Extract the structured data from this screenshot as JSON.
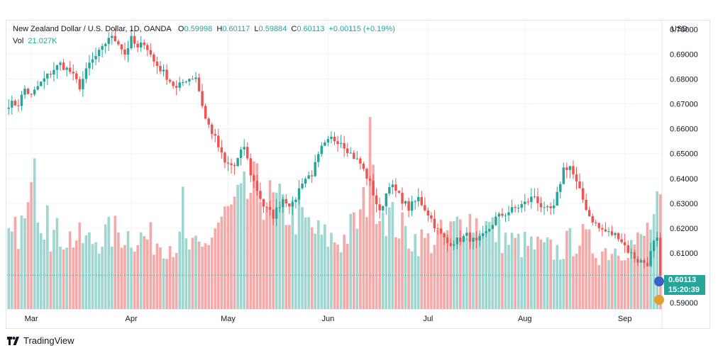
{
  "legend": {
    "symbol": "New Zealand Dollar / U.S. Dollar, 1D, OANDA",
    "open_label": "O",
    "open": "0.59998",
    "high_label": "H",
    "high": "0.60117",
    "low_label": "L",
    "low": "0.59884",
    "close_label": "C",
    "close": "0.60113",
    "change": "+0.00115 (+0.19%)",
    "vol_label": "Vol",
    "vol": "21.027K"
  },
  "axis": {
    "currency": "USD"
  },
  "price_tag": {
    "price": "0.60113",
    "countdown": "15:20:39"
  },
  "brand": {
    "name": "TradingView",
    "icon": "tradingview-logo-icon"
  },
  "colors": {
    "up": "#26a69a",
    "down": "#ef5350",
    "up_vol": "#9fd6d0",
    "down_vol": "#f5a9a8",
    "grid": "#f0f3fa"
  },
  "chart_data": {
    "type": "candlestick",
    "title": "New Zealand Dollar / U.S. Dollar, 1D, OANDA",
    "ylabel": "USD",
    "ylim": [
      0.5875,
      0.7035
    ],
    "y_ticks": [
      "0.70000",
      "0.69000",
      "0.68000",
      "0.67000",
      "0.66000",
      "0.65000",
      "0.64000",
      "0.63000",
      "0.62000",
      "0.61000",
      "0.59000"
    ],
    "x_ticks": [
      "Mar",
      "Apr",
      "May",
      "Jun",
      "Jul",
      "Aug",
      "Sep"
    ],
    "x_tick_index": [
      7,
      38,
      68,
      99,
      130,
      160,
      191
    ],
    "anchors": [
      [
        0,
        0.67
      ],
      [
        3,
        0.67
      ],
      [
        5,
        0.676
      ],
      [
        7,
        0.673
      ],
      [
        9,
        0.677
      ],
      [
        14,
        0.684
      ],
      [
        16,
        0.686
      ],
      [
        19,
        0.683
      ],
      [
        22,
        0.677
      ],
      [
        25,
        0.686
      ],
      [
        29,
        0.692
      ],
      [
        31,
        0.697
      ],
      [
        34,
        0.695
      ],
      [
        36,
        0.69
      ],
      [
        38,
        0.696
      ],
      [
        40,
        0.692
      ],
      [
        42,
        0.695
      ],
      [
        45,
        0.687
      ],
      [
        49,
        0.681
      ],
      [
        52,
        0.676
      ],
      [
        55,
        0.68
      ],
      [
        58,
        0.681
      ],
      [
        61,
        0.664
      ],
      [
        64,
        0.656
      ],
      [
        67,
        0.646
      ],
      [
        70,
        0.645
      ],
      [
        73,
        0.653
      ],
      [
        75,
        0.642
      ],
      [
        79,
        0.629
      ],
      [
        82,
        0.625
      ],
      [
        85,
        0.632
      ],
      [
        88,
        0.629
      ],
      [
        91,
        0.639
      ],
      [
        94,
        0.642
      ],
      [
        97,
        0.652
      ],
      [
        100,
        0.656
      ],
      [
        103,
        0.655
      ],
      [
        106,
        0.65
      ],
      [
        109,
        0.646
      ],
      [
        112,
        0.638
      ],
      [
        115,
        0.626
      ],
      [
        118,
        0.638
      ],
      [
        121,
        0.633
      ],
      [
        124,
        0.628
      ],
      [
        127,
        0.632
      ],
      [
        130,
        0.626
      ],
      [
        133,
        0.619
      ],
      [
        136,
        0.614
      ],
      [
        139,
        0.615
      ],
      [
        142,
        0.617
      ],
      [
        145,
        0.614
      ],
      [
        148,
        0.618
      ],
      [
        151,
        0.624
      ],
      [
        154,
        0.626
      ],
      [
        157,
        0.628
      ],
      [
        160,
        0.63
      ],
      [
        163,
        0.633
      ],
      [
        166,
        0.627
      ],
      [
        169,
        0.628
      ],
      [
        172,
        0.644
      ],
      [
        174,
        0.645
      ],
      [
        176,
        0.638
      ],
      [
        180,
        0.625
      ],
      [
        183,
        0.62
      ],
      [
        186,
        0.618
      ],
      [
        189,
        0.617
      ],
      [
        192,
        0.611
      ],
      [
        195,
        0.607
      ],
      [
        198,
        0.606
      ],
      [
        200,
        0.614
      ],
      [
        201,
        0.615
      ],
      [
        202,
        0.6011
      ]
    ],
    "volume_anchors": [
      [
        0,
        14000
      ],
      [
        5,
        18000
      ],
      [
        8,
        24000
      ],
      [
        12,
        16000
      ],
      [
        18,
        15000
      ],
      [
        25,
        14000
      ],
      [
        33,
        16000
      ],
      [
        40,
        15000
      ],
      [
        48,
        14000
      ],
      [
        55,
        13000
      ],
      [
        60,
        12000
      ],
      [
        65,
        18000
      ],
      [
        70,
        21000
      ],
      [
        76,
        25000
      ],
      [
        82,
        22000
      ],
      [
        90,
        19000
      ],
      [
        97,
        15000
      ],
      [
        103,
        14000
      ],
      [
        109,
        19000
      ],
      [
        112,
        26000
      ],
      [
        117,
        20000
      ],
      [
        124,
        15000
      ],
      [
        130,
        14000
      ],
      [
        137,
        16000
      ],
      [
        142,
        19000
      ],
      [
        149,
        17000
      ],
      [
        155,
        14000
      ],
      [
        162,
        13000
      ],
      [
        170,
        12000
      ],
      [
        177,
        15000
      ],
      [
        183,
        12000
      ],
      [
        190,
        13000
      ],
      [
        196,
        14000
      ],
      [
        202,
        21027
      ]
    ],
    "volume_ylim": [
      0,
      60000
    ]
  }
}
